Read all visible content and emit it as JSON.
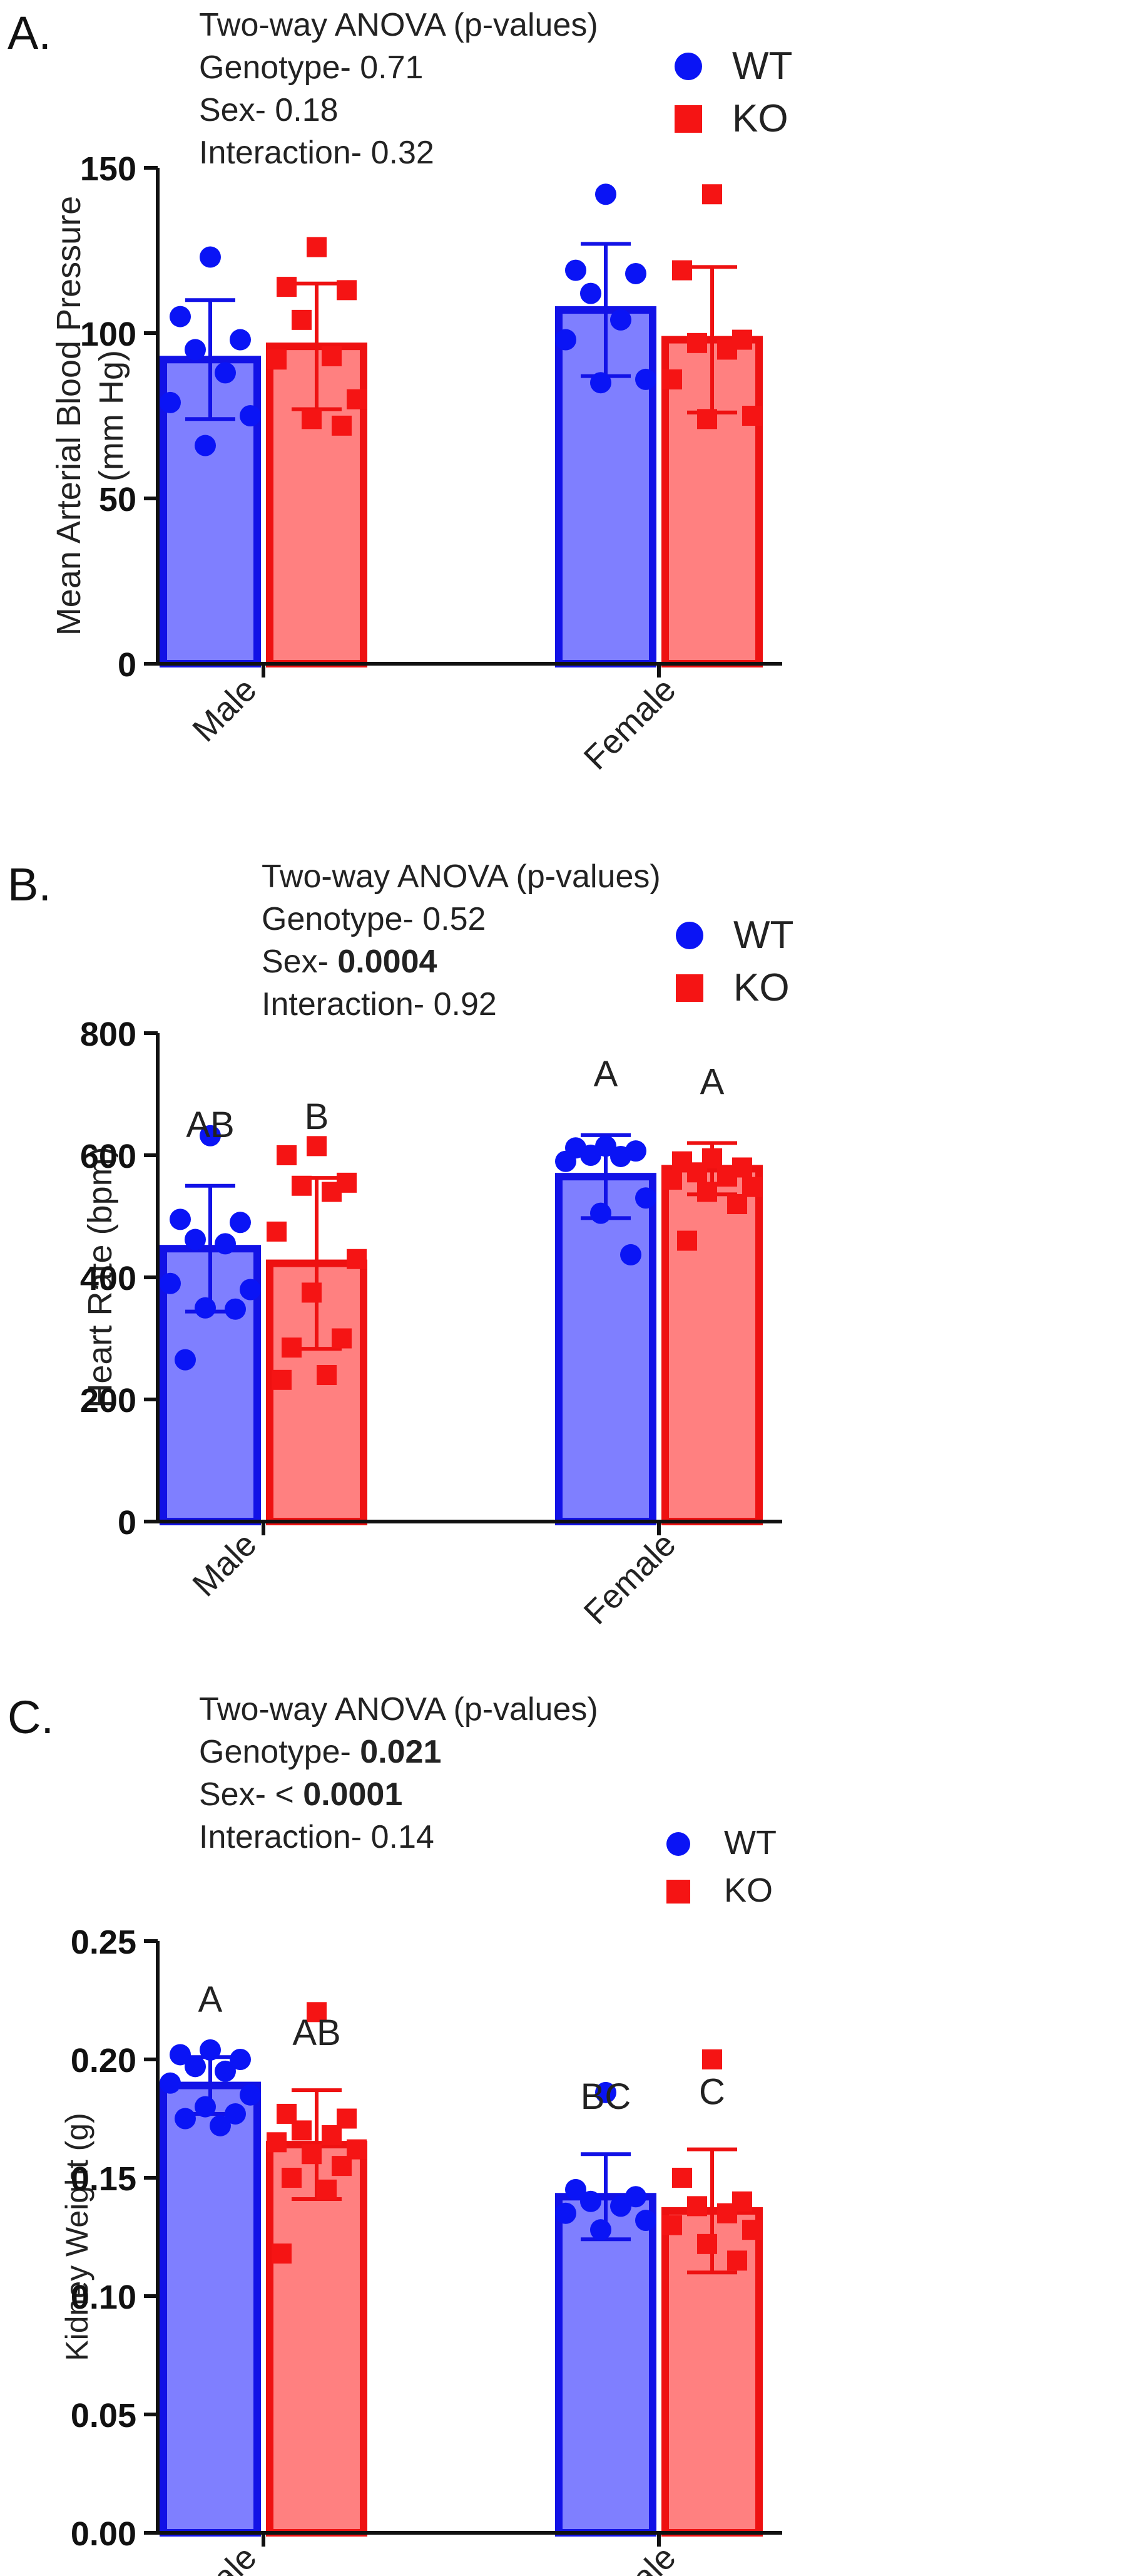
{
  "colors": {
    "wt_fill": "#7f7fff",
    "wt_stroke": "#1212e6",
    "wt_point": "#0a14f5",
    "ko_fill": "#ff8080",
    "ko_stroke": "#ee1111",
    "ko_point": "#f51414"
  },
  "legend": {
    "wt": "WT",
    "ko": "KO"
  },
  "chart_data": [
    {
      "type": "bar",
      "panel_label": "A.",
      "anova": {
        "title": "Two-way ANOVA (p-values)",
        "lines": [
          {
            "label": "Genotype- ",
            "value": "0.71",
            "bold": false
          },
          {
            "label": "Sex- ",
            "value": "0.18",
            "bold": false
          },
          {
            "label": "Interaction- ",
            "value": "0.32",
            "bold": false
          }
        ]
      },
      "ylabel_lines": [
        "Mean Arterial Blood Pressure",
        "(mm Hg)"
      ],
      "ylim": [
        0,
        150
      ],
      "yticks": [
        0,
        50,
        100,
        150
      ],
      "ytick_labels": [
        "0",
        "50",
        "100",
        "150"
      ],
      "categories": [
        "Male",
        "Female"
      ],
      "series": [
        {
          "name": "WT",
          "values": [
            92,
            107
          ],
          "sd": [
            18,
            20
          ],
          "points": [
            [
              123,
              105,
              98,
              95,
              88,
              79,
              75,
              66
            ],
            [
              142,
              119,
              118,
              112,
              104,
              98,
              86,
              85
            ]
          ]
        },
        {
          "name": "KO",
          "values": [
            96,
            98
          ],
          "sd": [
            19,
            22
          ],
          "points": [
            [
              126,
              114,
              113,
              104,
              93,
              92,
              80,
              74,
              72
            ],
            [
              142,
              119,
              98,
              97,
              95,
              86,
              75,
              74
            ]
          ]
        }
      ],
      "letters": [
        "",
        "",
        "",
        ""
      ]
    },
    {
      "type": "bar",
      "panel_label": "B.",
      "anova": {
        "title": "Two-way ANOVA (p-values)",
        "lines": [
          {
            "label": "Genotype- ",
            "value": "0.52",
            "bold": false
          },
          {
            "label": "Sex- ",
            "value": "0.0004",
            "bold": true
          },
          {
            "label": "Interaction- ",
            "value": "0.92",
            "bold": false
          }
        ]
      },
      "ylabel_lines": [
        "Heart Rate (bpm)"
      ],
      "ylim": [
        0,
        800
      ],
      "yticks": [
        0,
        200,
        400,
        600,
        800
      ],
      "ytick_labels": [
        "0",
        "200",
        "400",
        "600",
        "800"
      ],
      "categories": [
        "Male",
        "Female"
      ],
      "series": [
        {
          "name": "WT",
          "values": [
            447,
            565
          ],
          "sd": [
            103,
            68
          ],
          "points": [
            [
              632,
              495,
              490,
              462,
              455,
              390,
              380,
              350,
              348,
              265
            ],
            [
              615,
              612,
              607,
              600,
              598,
              590,
              530,
              505,
              437
            ]
          ]
        },
        {
          "name": "KO",
          "values": [
            423,
            578
          ],
          "sd": [
            140,
            42
          ],
          "points": [
            [
              615,
              600,
              555,
              550,
              540,
              475,
              430,
              375,
              300,
              285,
              240,
              232
            ],
            [
              595,
              590,
              580,
              572,
              565,
              560,
              548,
              540,
              520,
              460
            ]
          ]
        }
      ],
      "letters": [
        "AB",
        "B",
        "A",
        "A"
      ]
    },
    {
      "type": "bar",
      "panel_label": "C.",
      "anova": {
        "title": "Two-way ANOVA (p-values)",
        "lines": [
          {
            "label": "Genotype- ",
            "value": "0.021",
            "bold": true
          },
          {
            "label": "Sex- < ",
            "value": "0.0001",
            "bold": true
          },
          {
            "label": "Interaction- ",
            "value": "0.14",
            "bold": false
          }
        ]
      },
      "ylabel_lines": [
        "Kidney Weight (g)"
      ],
      "ylim": [
        0,
        0.25
      ],
      "yticks": [
        0,
        0.05,
        0.1,
        0.15,
        0.2,
        0.25
      ],
      "ytick_labels": [
        "0.00",
        "0.05",
        "0.10",
        "0.15",
        "0.20",
        "0.25"
      ],
      "categories": [
        "Male",
        "Female"
      ],
      "series": [
        {
          "name": "WT",
          "values": [
            0.189,
            0.142
          ],
          "sd": [
            0.012,
            0.018
          ],
          "points": [
            [
              0.204,
              0.202,
              0.2,
              0.197,
              0.195,
              0.19,
              0.185,
              0.18,
              0.177,
              0.175,
              0.172
            ],
            [
              0.186,
              0.145,
              0.142,
              0.14,
              0.138,
              0.135,
              0.132,
              0.128
            ]
          ]
        },
        {
          "name": "KO",
          "values": [
            0.164,
            0.136
          ],
          "sd": [
            0.023,
            0.026
          ],
          "points": [
            [
              0.22,
              0.177,
              0.175,
              0.17,
              0.168,
              0.165,
              0.162,
              0.16,
              0.155,
              0.15,
              0.145,
              0.118
            ],
            [
              0.2,
              0.15,
              0.14,
              0.138,
              0.135,
              0.13,
              0.128,
              0.122,
              0.115
            ]
          ]
        }
      ],
      "letters": [
        "A",
        "AB",
        "BC",
        "C"
      ]
    }
  ]
}
